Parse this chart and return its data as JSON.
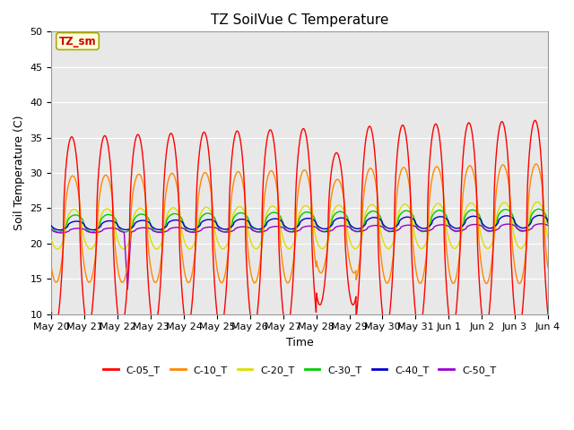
{
  "title": "TZ SoilVue C Temperature",
  "xlabel": "Time",
  "ylabel": "Soil Temperature (C)",
  "ylim": [
    10,
    50
  ],
  "background_color": "#ffffff",
  "plot_bg_color": "#e8e8e8",
  "annotation_label": "TZ_sm",
  "annotation_bg": "#ffffdd",
  "annotation_border": "#aaaa00",
  "annotation_text_color": "#cc0000",
  "xtick_labels": [
    "May 20",
    "May 21",
    "May 22",
    "May 23",
    "May 24",
    "May 25",
    "May 26",
    "May 27",
    "May 28",
    "May 29",
    "May 30",
    "May 31",
    "Jun 1",
    "Jun 2",
    "Jun 3",
    "Jun 4"
  ],
  "ytick_values": [
    10,
    15,
    20,
    25,
    30,
    35,
    40,
    45,
    50
  ],
  "legend_items": [
    "C-05_T",
    "C-10_T",
    "C-20_T",
    "C-30_T",
    "C-40_T",
    "C-50_T"
  ],
  "legend_colors": [
    "#ff0000",
    "#ff8800",
    "#dddd00",
    "#00cc00",
    "#0000cc",
    "#9900cc"
  ],
  "n_days": 15,
  "c05_base": 21.5,
  "c05_amp": 13.5,
  "c10_base": 22.0,
  "c10_amp": 7.5,
  "c20_base": 22.0,
  "c20_amp": 2.8,
  "c30_base": 22.8,
  "c30_amp": 1.2,
  "c40_base": 22.5,
  "c40_amp": 0.6,
  "c50_base": 21.8,
  "c50_amp": 0.3
}
